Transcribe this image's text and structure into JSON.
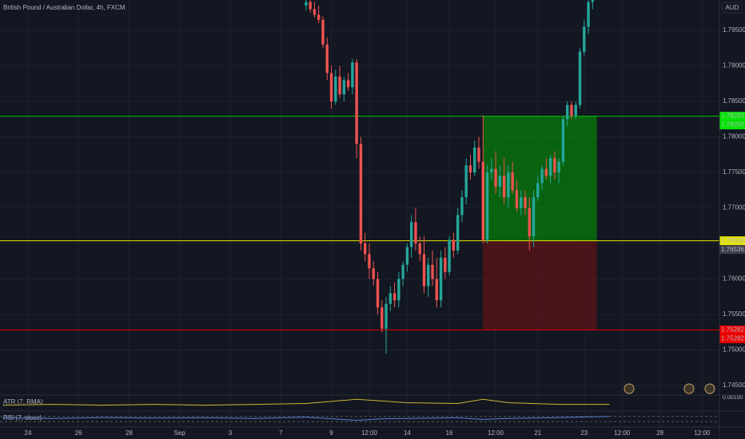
{
  "chart_data": {
    "type": "candlestick",
    "title": "British Pound / Australian Dollar, 4h, FXCM",
    "currency": "AUD",
    "up_color": "#26a69a",
    "down_color": "#ef5350",
    "grid": true,
    "x": [
      66,
      67,
      68,
      69,
      70,
      71,
      72,
      73,
      74,
      75,
      76,
      77,
      78,
      79,
      80,
      81,
      82,
      83,
      84,
      85,
      86,
      87,
      88,
      89,
      90,
      91,
      92,
      93,
      94,
      95,
      96,
      97,
      98,
      99,
      100,
      101,
      102,
      103,
      104,
      105,
      106,
      107,
      108,
      109,
      110,
      111,
      112,
      113,
      114,
      115,
      116,
      117,
      118,
      119,
      120,
      121,
      122,
      123,
      124,
      125,
      126,
      127,
      128,
      129,
      130,
      131,
      132,
      133,
      134
    ],
    "open": [
      1.7985,
      1.799,
      1.798,
      1.7972,
      1.7965,
      1.793,
      1.789,
      1.785,
      1.7885,
      1.786,
      1.788,
      1.787,
      1.7905,
      1.779,
      1.765,
      1.7635,
      1.7615,
      1.76,
      1.756,
      1.753,
      1.7565,
      1.758,
      1.757,
      1.76,
      1.762,
      1.7645,
      1.768,
      1.765,
      1.7635,
      1.759,
      1.762,
      1.76,
      1.757,
      1.763,
      1.761,
      1.7655,
      1.764,
      1.769,
      1.7715,
      1.776,
      1.775,
      1.7785,
      1.7765,
      1.7655,
      1.775,
      1.7755,
      1.773,
      1.7745,
      1.7715,
      1.775,
      1.7725,
      1.77,
      1.7715,
      1.77,
      1.766,
      1.7715,
      1.7735,
      1.7755,
      1.7745,
      1.777,
      1.775,
      1.7765,
      1.7825,
      1.7845,
      1.783,
      1.7845,
      1.792,
      1.7955,
      1.799
    ],
    "high": [
      1.7999,
      1.7998,
      1.799,
      1.7985,
      1.797,
      1.794,
      1.79,
      1.7895,
      1.79,
      1.7885,
      1.789,
      1.791,
      1.791,
      1.78,
      1.7665,
      1.765,
      1.7625,
      1.761,
      1.757,
      1.7575,
      1.759,
      1.7595,
      1.761,
      1.7625,
      1.765,
      1.769,
      1.77,
      1.766,
      1.766,
      1.763,
      1.764,
      1.763,
      1.764,
      1.7645,
      1.766,
      1.7665,
      1.77,
      1.7725,
      1.777,
      1.7775,
      1.7795,
      1.78,
      1.783,
      1.776,
      1.777,
      1.778,
      1.776,
      1.777,
      1.776,
      1.7765,
      1.774,
      1.7725,
      1.7725,
      1.7715,
      1.7725,
      1.7745,
      1.776,
      1.777,
      1.7775,
      1.778,
      1.777,
      1.783,
      1.785,
      1.785,
      1.785,
      1.7925,
      1.7965,
      1.7999,
      1.8
    ],
    "low": [
      1.7978,
      1.7975,
      1.7968,
      1.796,
      1.7925,
      1.788,
      1.784,
      1.7845,
      1.7855,
      1.785,
      1.7865,
      1.786,
      1.777,
      1.764,
      1.7625,
      1.76,
      1.759,
      1.755,
      1.7525,
      1.7495,
      1.7555,
      1.756,
      1.756,
      1.759,
      1.761,
      1.763,
      1.764,
      1.7625,
      1.758,
      1.7575,
      1.759,
      1.756,
      1.756,
      1.76,
      1.7605,
      1.763,
      1.7635,
      1.768,
      1.7705,
      1.774,
      1.7745,
      1.7755,
      1.765,
      1.765,
      1.774,
      1.772,
      1.7715,
      1.7705,
      1.77,
      1.772,
      1.7695,
      1.769,
      1.769,
      1.764,
      1.7645,
      1.771,
      1.7725,
      1.774,
      1.7735,
      1.774,
      1.7735,
      1.776,
      1.7815,
      1.7825,
      1.7825,
      1.784,
      1.7915,
      1.7945,
      1.798
    ],
    "close": [
      1.799,
      1.798,
      1.7972,
      1.7965,
      1.793,
      1.789,
      1.785,
      1.7885,
      1.786,
      1.788,
      1.787,
      1.7905,
      1.779,
      1.765,
      1.7635,
      1.7615,
      1.76,
      1.756,
      1.753,
      1.7565,
      1.758,
      1.757,
      1.76,
      1.762,
      1.7645,
      1.768,
      1.765,
      1.7635,
      1.759,
      1.762,
      1.76,
      1.757,
      1.763,
      1.761,
      1.7655,
      1.764,
      1.769,
      1.7715,
      1.776,
      1.775,
      1.7785,
      1.7765,
      1.7655,
      1.775,
      1.7755,
      1.773,
      1.7745,
      1.7715,
      1.775,
      1.7725,
      1.77,
      1.7715,
      1.77,
      1.766,
      1.7715,
      1.7735,
      1.7755,
      1.7745,
      1.777,
      1.775,
      1.7765,
      1.7825,
      1.7845,
      1.783,
      1.7845,
      1.792,
      1.7955,
      1.799,
      1.7995
    ],
    "xlim": [
      -6.64,
      164.1
    ],
    "ylim": [
      1.74365,
      1.79928
    ],
    "yticks": [
      {
        "value": 1.745,
        "label": "1.74500"
      },
      {
        "value": 1.75,
        "label": "1.75000"
      },
      {
        "value": 1.755,
        "label": "1.75500"
      },
      {
        "value": 1.76,
        "label": "1.76000"
      },
      {
        "value": 1.765,
        "label": "1.76500"
      },
      {
        "value": 1.77,
        "label": "1.77000"
      },
      {
        "value": 1.775,
        "label": "1.77500"
      },
      {
        "value": 1.78,
        "label": "1.78000"
      },
      {
        "value": 1.785,
        "label": "1.78500"
      },
      {
        "value": 1.79,
        "label": "1.79000"
      },
      {
        "value": 1.795,
        "label": "1.79500"
      }
    ],
    "xticks": [
      {
        "value": 0,
        "label": "24"
      },
      {
        "value": 12,
        "label": "26"
      },
      {
        "value": 24,
        "label": "28"
      },
      {
        "value": 36,
        "label": "Sep"
      },
      {
        "value": 48,
        "label": "3"
      },
      {
        "value": 60,
        "label": "7"
      },
      {
        "value": 72,
        "label": "9"
      },
      {
        "value": 81,
        "label": "12:00"
      },
      {
        "value": 90,
        "label": "14"
      },
      {
        "value": 100,
        "label": "16"
      },
      {
        "value": 111,
        "label": "12:00"
      },
      {
        "value": 121,
        "label": "21"
      },
      {
        "value": 132,
        "label": "23"
      },
      {
        "value": 141,
        "label": "12:00"
      },
      {
        "value": 150,
        "label": "28"
      },
      {
        "value": 160,
        "label": "12:00"
      }
    ],
    "position": {
      "entry": 1.76538,
      "target": 1.78292,
      "stop": 1.75282,
      "start": 108,
      "end": 135
    },
    "price_labels": [
      {
        "value": 1.78292,
        "color": "#00e600"
      },
      {
        "value": 1.78292,
        "color": "#00e600"
      },
      {
        "value": 1.76538,
        "color": "#e6e600"
      },
      {
        "value": 1.76536,
        "color": "#3c3f4a"
      },
      {
        "value": 1.75282,
        "color": "#f00000"
      },
      {
        "value": 1.75282,
        "color": "#f00000"
      }
    ],
    "indicators": [
      {
        "label": "ATR (7, RMA)",
        "color": "#c9b634",
        "x": [
          -6,
          6,
          18,
          30,
          42,
          54,
          66,
          78,
          84,
          90,
          102,
          108,
          114,
          126,
          138
        ],
        "values": [
          0.00055,
          0.0006,
          0.00055,
          0.0006,
          0.00055,
          0.0006,
          0.00065,
          0.0009,
          0.0008,
          0.0007,
          0.00065,
          0.0009,
          0.0007,
          0.0006,
          0.0006
        ],
        "ylim": [
          0.0003,
          0.00105
        ],
        "ticks": [
          {
            "value": 0.001,
            "label": "0.00100"
          }
        ]
      },
      {
        "label": "RSI (7, close)",
        "color": "#5b7fd8",
        "x": [
          -6,
          6,
          18,
          30,
          42,
          54,
          66,
          78,
          84,
          90,
          102,
          108,
          114,
          126,
          138
        ],
        "values": [
          60,
          55,
          62,
          58,
          60,
          55,
          65,
          40,
          52,
          55,
          60,
          48,
          55,
          62,
          70
        ],
        "ylim": [
          0,
          100
        ],
        "ticks": [
          70,
          30
        ]
      }
    ]
  }
}
